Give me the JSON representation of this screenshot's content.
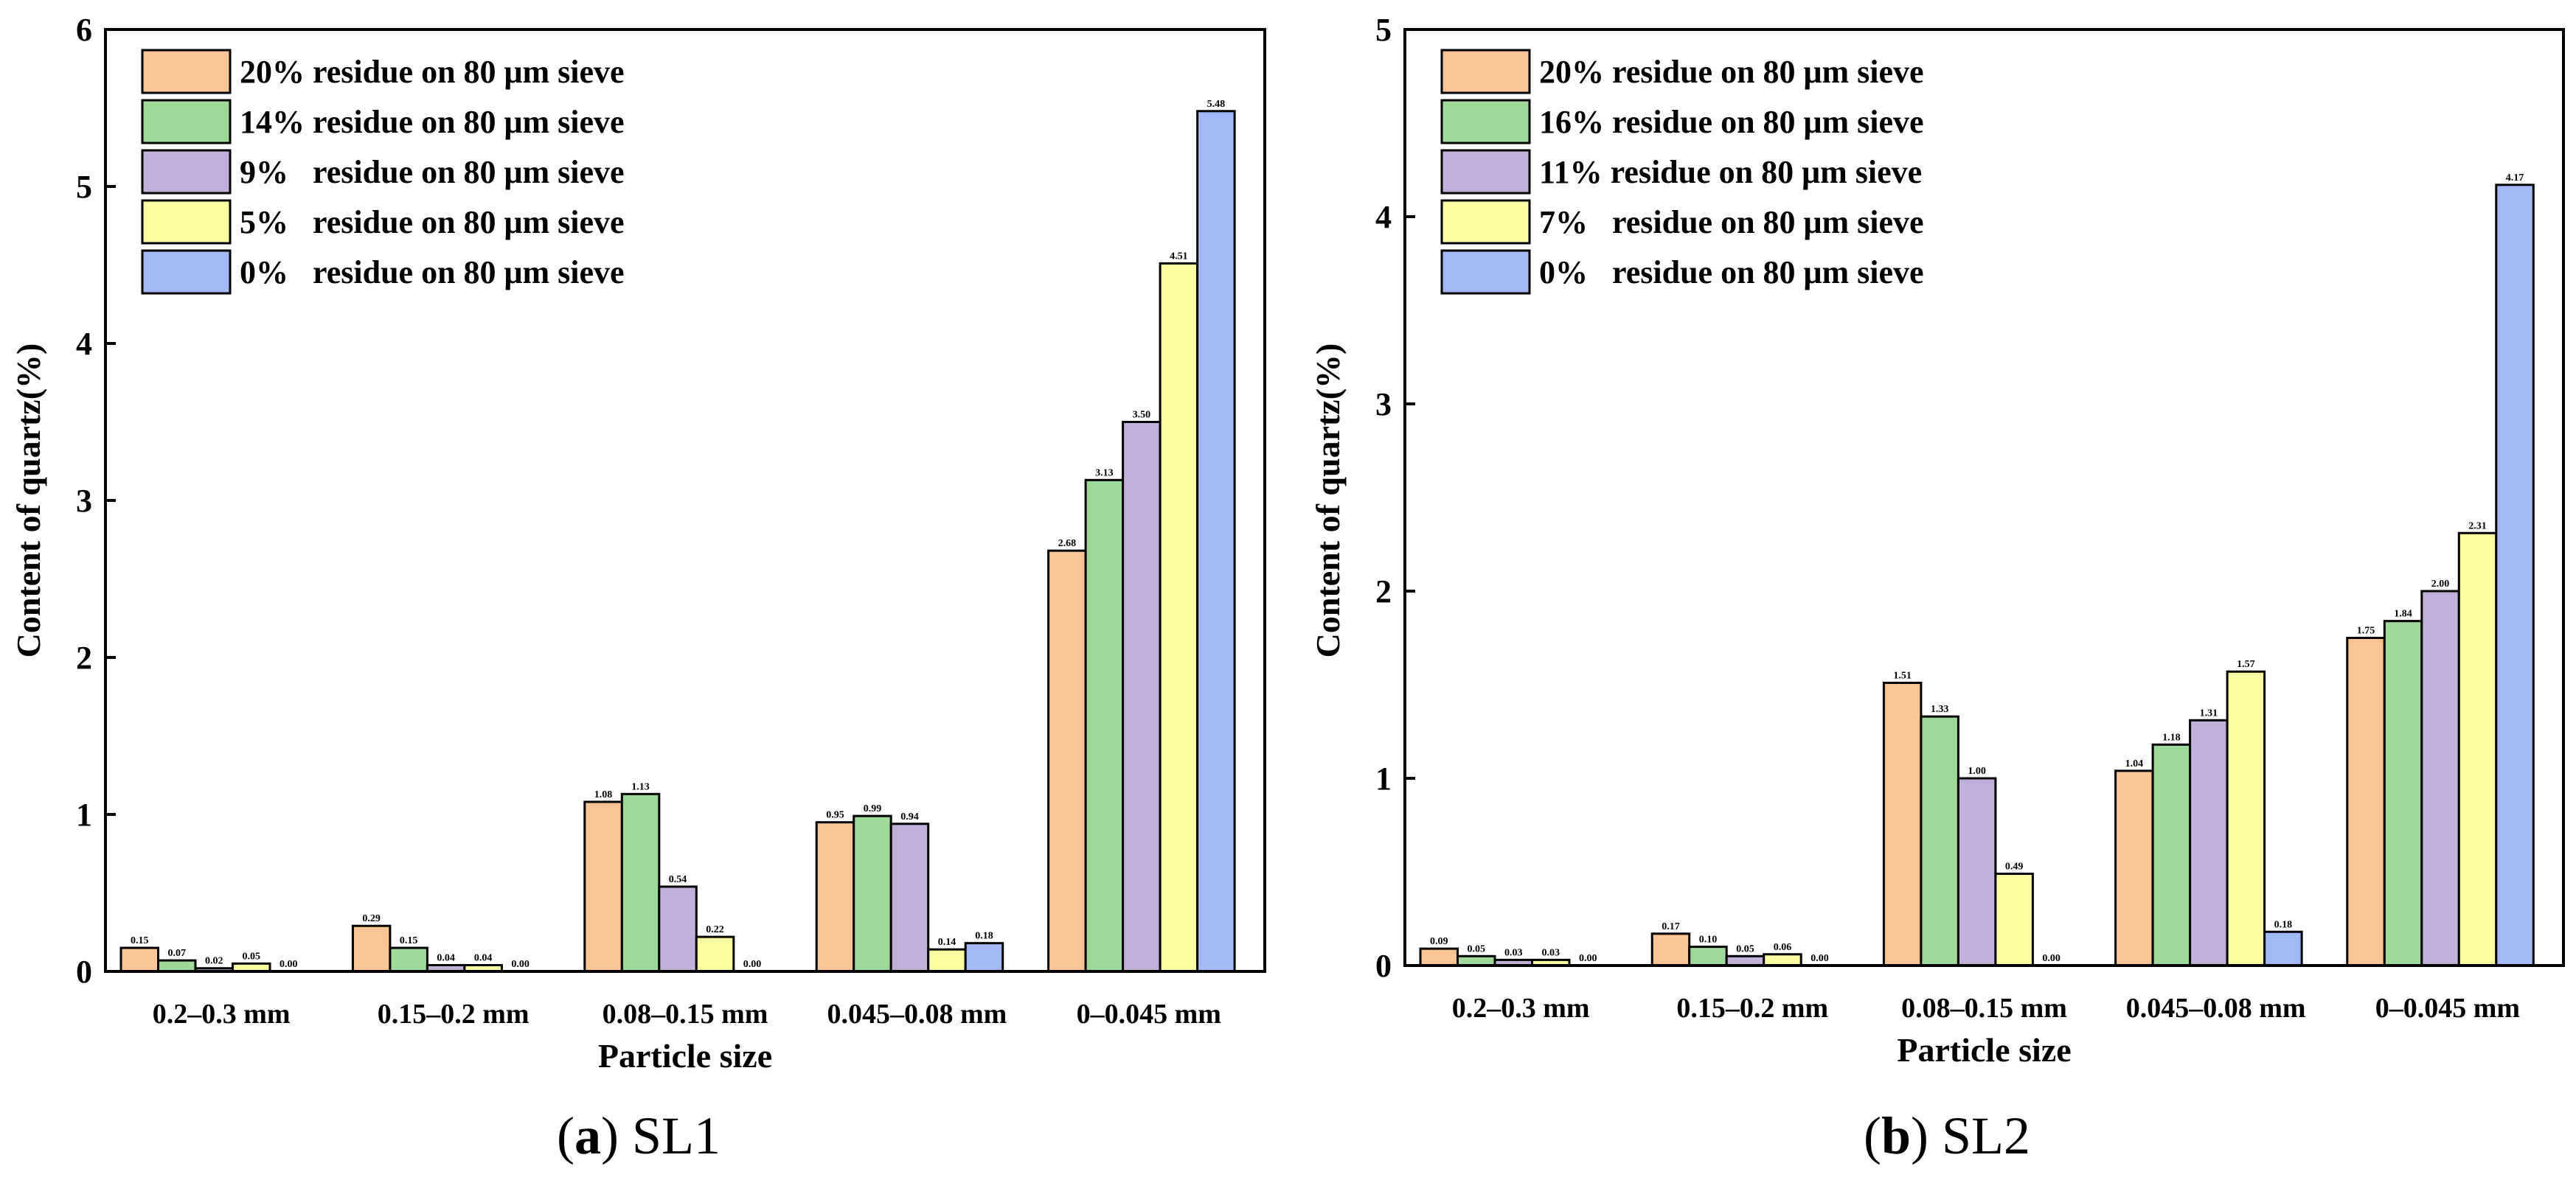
{
  "figure": {
    "palette": [
      "#f9c594",
      "#9ed99a",
      "#c0b0da",
      "#fdfda1",
      "#a2b9f5"
    ],
    "stroke_color": "#000000"
  },
  "chart_data": [
    {
      "type": "bar",
      "id": "sl1",
      "caption_letter": "(a)",
      "caption_name": "SL1",
      "xlabel": "Particle size",
      "ylabel": "Content of quartz(%)",
      "ylim": [
        0,
        6
      ],
      "yticks": [
        "0",
        "1",
        "2",
        "3",
        "4",
        "5",
        "6"
      ],
      "categories": [
        "0.2–0.3 mm",
        "0.15–0.2 mm",
        "0.08–0.15 mm",
        "0.045–0.08 mm",
        "0–0.045 mm"
      ],
      "series": [
        {
          "name": "20% residue on 80 μm sieve",
          "values": [
            0.15,
            0.29,
            1.08,
            0.95,
            2.68
          ],
          "labels": [
            "0.15",
            "0.29",
            "1.08",
            "0.95",
            "2.68"
          ]
        },
        {
          "name": "14% residue on 80 μm sieve",
          "values": [
            0.07,
            0.15,
            1.13,
            0.99,
            3.13
          ],
          "labels": [
            "0.07",
            "0.15",
            "1.13",
            "0.99",
            "3.13"
          ]
        },
        {
          "name": "9%   residue on 80 μm sieve",
          "values": [
            0.02,
            0.04,
            0.54,
            0.94,
            3.5
          ],
          "labels": [
            "0.02",
            "0.04",
            "0.54",
            "0.94",
            "3.50"
          ]
        },
        {
          "name": "5%   residue on 80 μm sieve",
          "values": [
            0.05,
            0.04,
            0.22,
            0.14,
            4.51
          ],
          "labels": [
            "0.05",
            "0.04",
            "0.22",
            "0.14",
            "4.51"
          ]
        },
        {
          "name": "0%   residue on 80 μm sieve",
          "values": [
            0.0,
            0.0,
            0.0,
            0.18,
            5.48
          ],
          "labels": [
            "0.00",
            "0.00",
            "0.00",
            "0.18",
            "5.48"
          ]
        }
      ],
      "legend_position": "top-left"
    },
    {
      "type": "bar",
      "id": "sl2",
      "caption_letter": "(b)",
      "caption_name": "SL2",
      "xlabel": "Particle size",
      "ylabel": "Content of quartz(%)",
      "ylim": [
        0,
        5
      ],
      "yticks": [
        "0",
        "1",
        "2",
        "3",
        "4",
        "5"
      ],
      "categories": [
        "0.2–0.3 mm",
        "0.15–0.2 mm",
        "0.08–0.15 mm",
        "0.045–0.08 mm",
        "0–0.045 mm"
      ],
      "series": [
        {
          "name": "20% residue on 80 μm sieve",
          "values": [
            0.09,
            0.17,
            1.51,
            1.04,
            1.75
          ],
          "labels": [
            "0.09",
            "0.17",
            "1.51",
            "1.04",
            "1.75"
          ]
        },
        {
          "name": "16% residue on 80 μm sieve",
          "values": [
            0.05,
            0.1,
            1.33,
            1.18,
            1.84
          ],
          "labels": [
            "0.05",
            "0.10",
            "1.33",
            "1.18",
            "1.84"
          ]
        },
        {
          "name": "11% residue on 80 μm sieve",
          "values": [
            0.03,
            0.05,
            1.0,
            1.31,
            2.0
          ],
          "labels": [
            "0.03",
            "0.05",
            "1.00",
            "1.31",
            "2.00"
          ]
        },
        {
          "name": "7%   residue on 80 μm sieve",
          "values": [
            0.03,
            0.06,
            0.49,
            1.57,
            2.31
          ],
          "labels": [
            "0.03",
            "0.06",
            "0.49",
            "1.57",
            "2.31"
          ]
        },
        {
          "name": "0%   residue on 80 μm sieve",
          "values": [
            0.0,
            0.0,
            0.0,
            0.18,
            4.17
          ],
          "labels": [
            "0.00",
            "0.00",
            "0.00",
            "0.18",
            "4.17"
          ]
        }
      ],
      "legend_position": "top-left"
    }
  ]
}
